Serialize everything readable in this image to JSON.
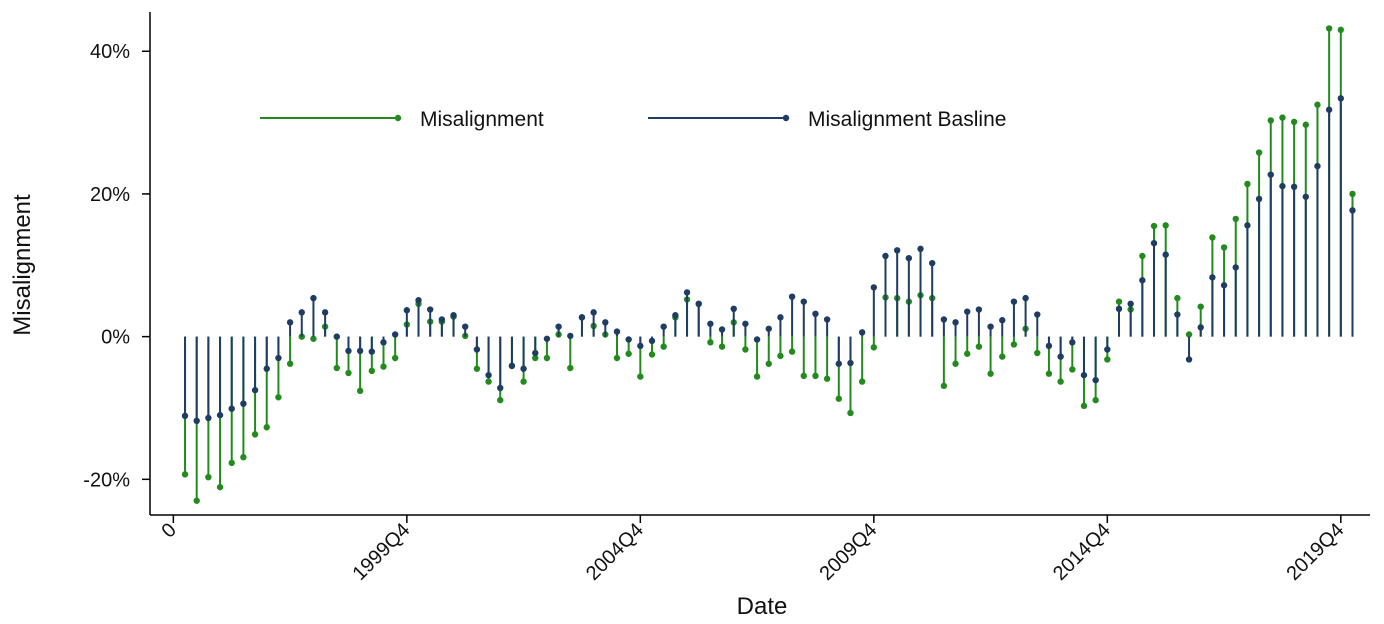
{
  "chart_data": {
    "type": "spike",
    "y_label": "Misalignment",
    "x_label": "Date",
    "x": [
      1,
      2,
      3,
      4,
      5,
      6,
      7,
      8,
      9,
      10,
      11,
      12,
      13,
      14,
      15,
      16,
      17,
      18,
      19,
      20,
      21,
      22,
      23,
      24,
      25,
      26,
      27,
      28,
      29,
      30,
      31,
      32,
      33,
      34,
      35,
      36,
      37,
      38,
      39,
      40,
      41,
      42,
      43,
      44,
      45,
      46,
      47,
      48,
      49,
      50,
      51,
      52,
      53,
      54,
      55,
      56,
      57,
      58,
      59,
      60,
      61,
      62,
      63,
      64,
      65,
      66,
      67,
      68,
      69,
      70,
      71,
      72,
      73,
      74,
      75,
      76,
      77,
      78,
      79,
      80,
      81,
      82,
      83,
      84,
      85,
      86,
      87,
      88,
      89,
      90,
      91,
      92,
      93,
      94,
      95,
      96,
      97,
      98,
      99,
      100,
      101
    ],
    "series": [
      {
        "name": "Misalignment",
        "color": "#238b1e",
        "values": [
          -19.3,
          -23,
          -19.7,
          -21.1,
          -17.7,
          -16.9,
          -13.7,
          -12.7,
          -8.5,
          -3.8,
          0,
          -0.3,
          1.4,
          -4.4,
          -5.1,
          -7.6,
          -4.8,
          -4.2,
          -3,
          1.7,
          4.6,
          2.1,
          2.1,
          2.8,
          0.1,
          -4.5,
          -6.3,
          -8.9,
          -4.1,
          -6.3,
          -3,
          -3,
          0.3,
          -4.4,
          2.7,
          1.5,
          0.3,
          -3,
          -2.4,
          -5.6,
          -2.5,
          -1.4,
          2.7,
          5.2,
          4.6,
          -0.8,
          -1.4,
          2,
          -1.8,
          -5.6,
          -3.8,
          -2.7,
          -2.1,
          -5.5,
          -5.5,
          -5.9,
          -8.7,
          -10.7,
          -6.3,
          -1.5,
          5.5,
          5.4,
          4.9,
          5.8,
          5.4,
          -6.9,
          -3.8,
          -2.4,
          -1.4,
          -5.2,
          -2.8,
          -1.1,
          1.1,
          -2.3,
          -5.2,
          -6.3,
          -4.6,
          -9.7,
          -8.9,
          -3.2,
          4.9,
          3.8,
          11.3,
          15.5,
          15.6,
          5.4,
          0.3,
          4.2,
          13.9,
          12.5,
          16.5,
          21.4,
          25.8,
          30.3,
          30.7,
          30.1,
          29.7,
          32.5,
          43.2,
          43,
          20
        ]
      },
      {
        "name": "Misalignment Basline",
        "color": "#1f3c63",
        "values": [
          -11.1,
          -11.8,
          -11.4,
          -11,
          -10.1,
          -9.4,
          -7.5,
          -4.5,
          -3,
          2,
          3.4,
          5.4,
          3.4,
          0,
          -2,
          -2,
          -2.1,
          -0.8,
          0.3,
          3.7,
          5.1,
          3.8,
          2.4,
          3,
          1.4,
          -1.8,
          -5.4,
          -7.2,
          -4.1,
          -4.5,
          -2.3,
          -0.3,
          1.4,
          0.1,
          2.7,
          3.4,
          2,
          0.7,
          -0.4,
          -1.3,
          -0.6,
          1.4,
          3,
          6.2,
          4.6,
          1.8,
          1,
          3.9,
          1.8,
          -0.4,
          1.1,
          2.7,
          5.6,
          4.9,
          3.2,
          2.4,
          -3.8,
          -3.7,
          0.6,
          6.9,
          11.3,
          12.1,
          11,
          12.3,
          10.3,
          2.4,
          2,
          3.5,
          3.8,
          1.4,
          2.3,
          4.9,
          5.4,
          3.1,
          -1.3,
          -2.8,
          -0.8,
          -5.4,
          -6.1,
          -1.8,
          3.9,
          4.6,
          7.9,
          13.1,
          11.5,
          3.1,
          -3.2,
          1.3,
          8.3,
          7.2,
          9.7,
          15.6,
          19.3,
          22.7,
          21.1,
          21,
          19.6,
          23.9,
          31.8,
          33.4,
          17.7
        ]
      }
    ],
    "xlim": [
      -2,
      102.5
    ],
    "ylim": [
      -25,
      45.5
    ],
    "xticks": [
      0,
      {
        "value": 20,
        "label": "1999Q4"
      },
      {
        "value": 40,
        "label": "2004Q4"
      },
      {
        "value": 60,
        "label": "2009Q4"
      },
      {
        "value": 80,
        "label": "2014Q4"
      },
      {
        "value": 100,
        "label": "2019Q4"
      }
    ],
    "yticks": [
      {
        "value": -20,
        "label": "-20%"
      },
      {
        "value": 0,
        "label": "0%"
      },
      {
        "value": 20,
        "label": "20%"
      },
      {
        "value": 40,
        "label": "40%"
      }
    ],
    "legend": "top",
    "grid": false
  }
}
